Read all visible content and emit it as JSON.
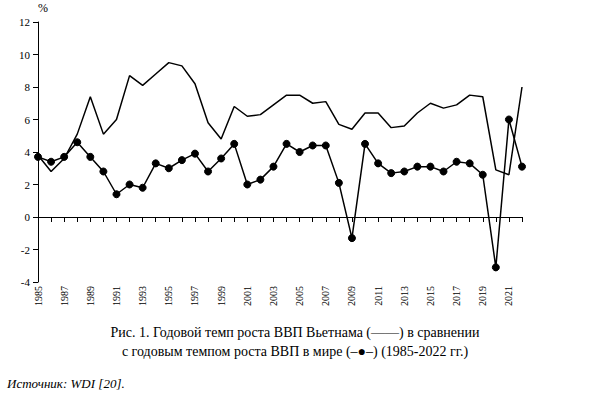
{
  "chart_data": {
    "type": "line",
    "title": "Рис. 1. Годовой темп роста ВВП Вьетнама (——) в сравнении\nс годовым темпом роста ВВП в мире (–●–) (1985-2022 гг.)",
    "annotations": [
      "Источник: WDI [20]."
    ],
    "ylabel": "%",
    "categories": [
      "1985",
      null,
      "1987",
      null,
      "1989",
      null,
      "1991",
      null,
      "1993",
      null,
      "1995",
      null,
      "1997",
      null,
      "1999",
      null,
      "2001",
      null,
      "2003",
      null,
      "2005",
      null,
      "2007",
      null,
      "2009",
      null,
      "2011",
      null,
      "2013",
      null,
      "2015",
      null,
      "2017",
      null,
      "2019",
      null,
      "2021",
      null
    ],
    "series": [
      {
        "color": "#000000",
        "marker": "none",
        "line_style": "solid",
        "values": [
          3.8,
          2.8,
          3.6,
          5.1,
          7.4,
          5.1,
          6.0,
          8.7,
          8.1,
          8.8,
          9.5,
          9.3,
          8.2,
          5.8,
          4.8,
          6.8,
          6.2,
          6.3,
          6.9,
          7.5,
          7.5,
          7.0,
          7.1,
          5.7,
          5.4,
          6.4,
          6.4,
          5.5,
          5.6,
          6.4,
          7.0,
          6.7,
          6.9,
          7.5,
          7.4,
          2.9,
          2.6,
          8.0
        ]
      },
      {
        "color": "#000000",
        "marker": "circle",
        "line_style": "solid",
        "values": [
          3.7,
          3.4,
          3.7,
          4.6,
          3.7,
          2.8,
          1.4,
          2.0,
          1.8,
          3.3,
          3.0,
          3.5,
          3.9,
          2.8,
          3.6,
          4.5,
          2.0,
          2.3,
          3.1,
          4.5,
          4.0,
          4.4,
          4.4,
          2.1,
          -1.3,
          4.5,
          3.3,
          2.7,
          2.8,
          3.1,
          3.1,
          2.8,
          3.4,
          3.3,
          2.6,
          -3.1,
          6.0,
          3.1
        ]
      }
    ],
    "ylim": [
      -4,
      12
    ],
    "yticks": [
      -4,
      -2,
      0,
      2,
      4,
      6,
      8,
      10,
      12
    ],
    "grid": false
  }
}
